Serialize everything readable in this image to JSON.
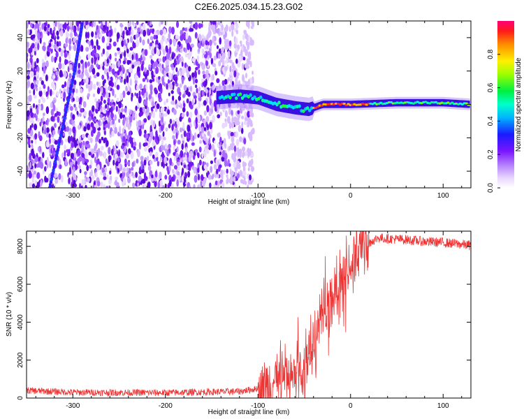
{
  "title": "C2E6.2025.034.15.23.G02",
  "chart_data": [
    {
      "type": "heatmap",
      "xlabel": "Height of straight line (km)",
      "ylabel": "Frequency (Hz)",
      "xlim": [
        -350,
        130
      ],
      "ylim": [
        -50,
        50
      ],
      "xticks": [
        -300,
        -200,
        -100,
        0,
        100
      ],
      "yticks": [
        -40,
        -20,
        0,
        20,
        40
      ],
      "colorbar": {
        "label": "Normalized spectral amplitude",
        "range": [
          0,
          1
        ],
        "ticks": [
          0.0,
          0.2,
          0.4,
          0.6,
          0.8
        ]
      },
      "features": {
        "noise_region_x": [
          -350,
          -105
        ],
        "signal_track": [
          {
            "x": -145,
            "y": 4
          },
          {
            "x": -120,
            "y": 5
          },
          {
            "x": -100,
            "y": 4
          },
          {
            "x": -80,
            "y": 0
          },
          {
            "x": -60,
            "y": -2
          },
          {
            "x": -45,
            "y": -3
          },
          {
            "x": -30,
            "y": 0
          },
          {
            "x": 0,
            "y": 0
          },
          {
            "x": 50,
            "y": 1
          },
          {
            "x": 100,
            "y": 1
          },
          {
            "x": 130,
            "y": 0
          }
        ],
        "diagonal_line": [
          {
            "x": -325,
            "y": -50
          },
          {
            "x": -298,
            "y": 20
          },
          {
            "x": -290,
            "y": 48
          }
        ]
      }
    },
    {
      "type": "line",
      "xlabel": "Height of straight line (km)",
      "ylabel": "SNR (10 * v/v)",
      "xlim": [
        -350,
        130
      ],
      "ylim": [
        0,
        8800
      ],
      "xticks": [
        -300,
        -200,
        -100,
        0,
        100
      ],
      "yticks": [
        0,
        2000,
        4000,
        6000,
        8000
      ],
      "series": [
        {
          "name": "SNR",
          "color": "#ee3333",
          "points": [
            [
              -350,
              400
            ],
            [
              -300,
              300
            ],
            [
              -200,
              280
            ],
            [
              -120,
              350
            ],
            [
              -100,
              500
            ],
            [
              -90,
              700
            ],
            [
              -80,
              1000
            ],
            [
              -70,
              900
            ],
            [
              -60,
              1300
            ],
            [
              -50,
              1700
            ],
            [
              -45,
              2400
            ],
            [
              -40,
              3000
            ],
            [
              -35,
              3800
            ],
            [
              -30,
              4500
            ],
            [
              -25,
              5000
            ],
            [
              -20,
              5300
            ],
            [
              -15,
              5500
            ],
            [
              -10,
              5900
            ],
            [
              -5,
              6400
            ],
            [
              0,
              7000
            ],
            [
              10,
              7700
            ],
            [
              20,
              8200
            ],
            [
              30,
              8450
            ],
            [
              40,
              8400
            ],
            [
              60,
              8350
            ],
            [
              80,
              8250
            ],
            [
              100,
              8200
            ],
            [
              120,
              8100
            ],
            [
              130,
              8050
            ]
          ]
        }
      ]
    }
  ],
  "colors": {
    "line": "#ee3333"
  }
}
